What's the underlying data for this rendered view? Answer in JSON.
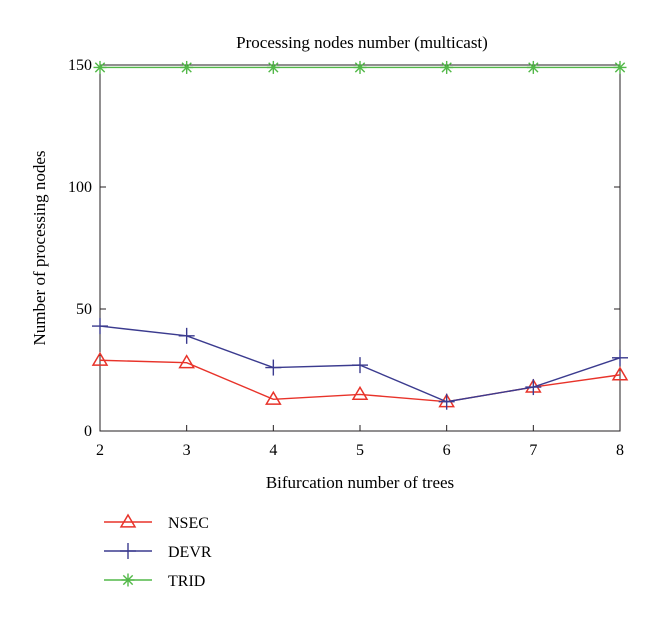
{
  "chart_data": {
    "type": "line",
    "title": "Processing nodes number (multicast)",
    "xlabel": "Bifurcation number of trees",
    "ylabel": "Number of processing nodes",
    "x": [
      2,
      3,
      4,
      5,
      6,
      7,
      8
    ],
    "xlim": [
      2,
      8
    ],
    "ylim": [
      0,
      150
    ],
    "xticks": [
      "2",
      "3",
      "4",
      "5",
      "6",
      "7",
      "8"
    ],
    "yticks": [
      "0",
      "50",
      "100",
      "150"
    ],
    "grid": false,
    "legend_position": "bottom-left, below plot",
    "series": [
      {
        "name": "NSEC",
        "color": "#e8332a",
        "marker": "triangle",
        "values": [
          29,
          28,
          13,
          15,
          12,
          18,
          23
        ]
      },
      {
        "name": "DEVR",
        "color": "#3b3b8f",
        "marker": "plus",
        "values": [
          43,
          39,
          26,
          27,
          12,
          18,
          30
        ]
      },
      {
        "name": "TRID",
        "color": "#52b848",
        "marker": "asterisk",
        "values": [
          149,
          149,
          149,
          149,
          149,
          149,
          149
        ]
      }
    ]
  }
}
